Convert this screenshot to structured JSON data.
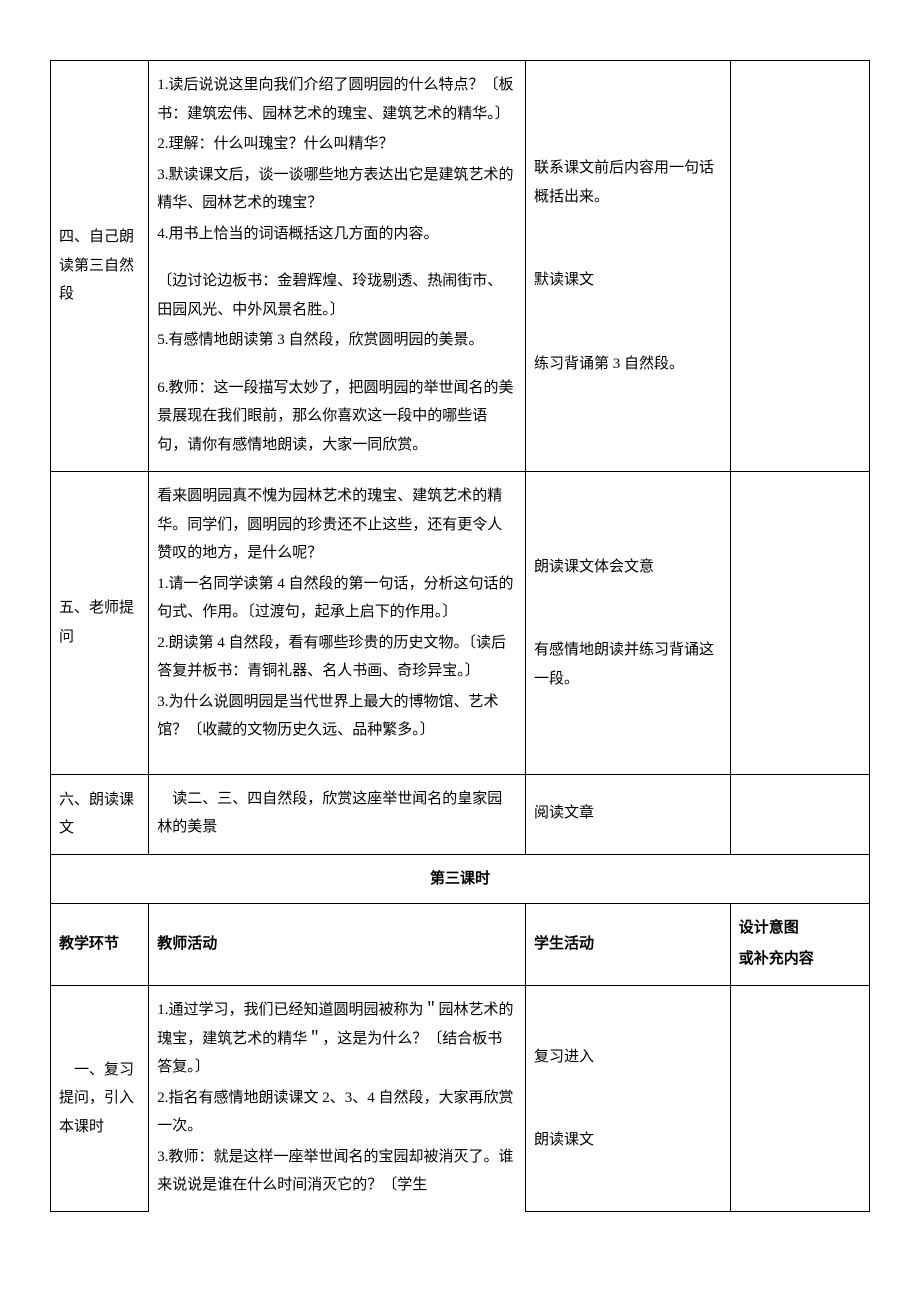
{
  "rows": [
    {
      "section": "四、自己朗读第三自然段",
      "teacher": [
        "1.读后说说这里向我们介绍了圆明园的什么特点？〔板书：建筑宏伟、园林艺术的瑰宝、建筑艺术的精华。〕",
        "2.理解：什么叫瑰宝？什么叫精华？",
        "3.默读课文后，谈一谈哪些地方表达出它是建筑艺术的精华、园林艺术的瑰宝？"
      ],
      "teacher2": [
        "4.用书上恰当的词语概括这几方面的内容。",
        "",
        "〔边讨论边板书：金碧辉煌、玲珑剔透、热闹街市、田园风光、中外风景名胜。〕",
        "5.有感情地朗读第 3 自然段，欣赏圆明园的美景。",
        "",
        "6.教师：这一段描写太妙了，把圆明园的举世闻名的美景展现在我们眼前，那么你喜欢这一段中的哪些语句，请你有感情地朗读，大家一同欣赏。"
      ],
      "student": [
        "联系课文前后内容用一句话概括出来。",
        "",
        "默读课文",
        "",
        "练习背诵第 3 自然段。"
      ]
    },
    {
      "section": "五、老师提问",
      "teacher": [
        "看来圆明园真不愧为园林艺术的瑰宝、建筑艺术的精华。同学们，圆明园的珍贵还不止这些，还有更令人赞叹的地方，是什么呢？",
        "1.请一名同学读第 4 自然段的第一句话，分析这句话的句式、作用。〔过渡句，起承上启下的作用。〕",
        "2.朗读第 4 自然段，看有哪些珍贵的历史文物。〔读后答复并板书：青铜礼器、名人书画、奇珍异宝。〕",
        "3.为什么说圆明园是当代世界上最大的博物馆、艺术馆？〔收藏的文物历史久远、品种繁多。〕"
      ],
      "student": [
        "朗读课文体会文意",
        "",
        "有感情地朗读并练习背诵这一段。"
      ]
    },
    {
      "section": "六、朗读课文",
      "teacher": [
        "　读二、三、四自然段，欣赏这座举世闻名的皇家园林的美景"
      ],
      "student": [
        "阅读文章"
      ]
    }
  ],
  "lesson_divider": "第三课时",
  "header": {
    "col1": "教学环节",
    "col2": "教师活动",
    "col3": "学生活动",
    "col4a": "设计意图",
    "col4b": "或补充内容"
  },
  "row_last": {
    "section": "　一、复习提问，引入本课时",
    "teacher": [
      "1.通过学习，我们已经知道圆明园被称为＂园林艺术的瑰宝，建筑艺术的精华＂，这是为什么？〔结合板书答复。〕",
      "2.指名有感情地朗读课文 2、3、4 自然段，大家再欣赏一次。",
      "3.教师：就是这样一座举世闻名的宝园却被消灭了。谁来说说是谁在什么时间消灭它的？〔学生"
    ],
    "student": [
      "复习进入",
      "",
      "朗读课文"
    ]
  },
  "style": {
    "font_family": "SimSun",
    "font_size_pt": 11,
    "line_height": 1.9,
    "border_color": "#000000",
    "background": "#ffffff",
    "text_color": "#000000"
  }
}
